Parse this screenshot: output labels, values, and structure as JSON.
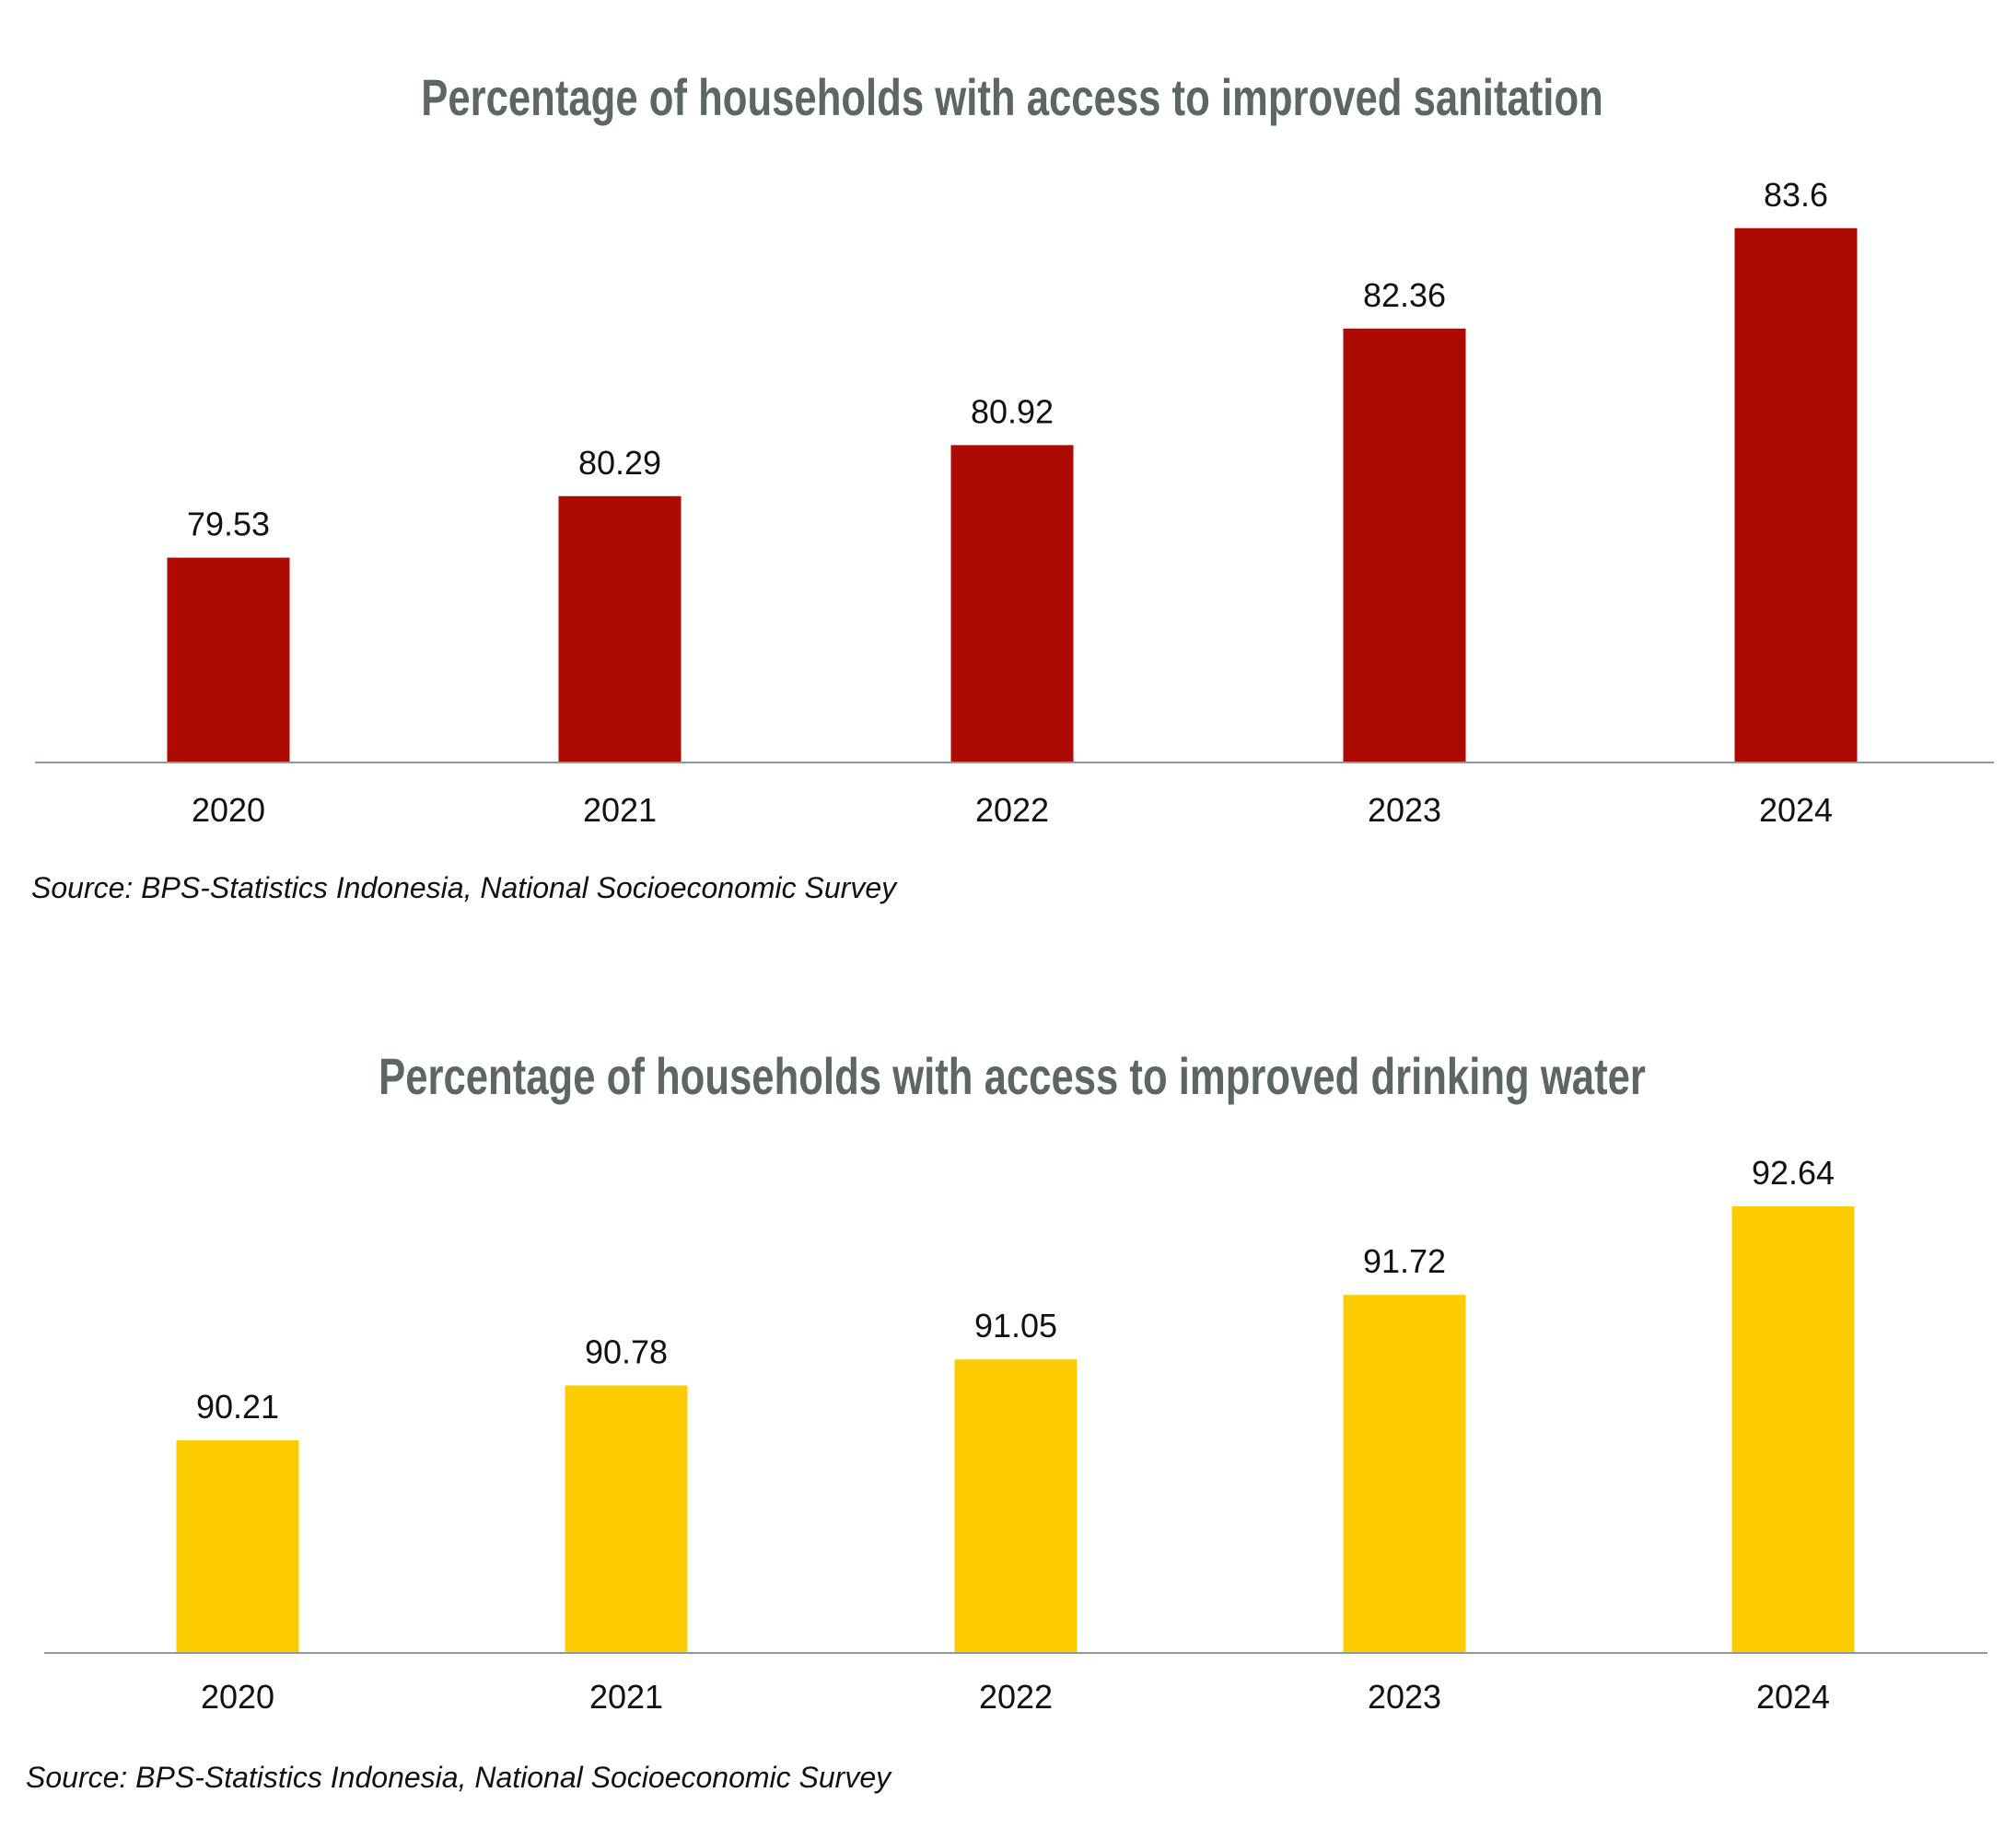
{
  "chart_data": [
    {
      "type": "bar",
      "title": "Percentage of households with access to improved sanitation",
      "categories": [
        "2020",
        "2021",
        "2022",
        "2023",
        "2024"
      ],
      "values": [
        79.53,
        80.29,
        80.92,
        82.36,
        83.6
      ],
      "value_labels": [
        "79.53",
        "80.29",
        "80.92",
        "82.36",
        "83.6"
      ],
      "ylim": [
        77,
        84.2
      ],
      "grid": false,
      "color": "#AD0A02",
      "source": "Source: BPS-Statistics Indonesia, National Socioeconomic Survey"
    },
    {
      "type": "bar",
      "title": "Percentage of households with access to improved drinking water",
      "categories": [
        "2020",
        "2021",
        "2022",
        "2023",
        "2024"
      ],
      "values": [
        90.21,
        90.78,
        91.05,
        91.72,
        92.64
      ],
      "value_labels": [
        "90.21",
        "90.78",
        "91.05",
        "91.72",
        "92.64"
      ],
      "ylim": [
        88,
        93.1
      ],
      "grid": false,
      "color": "#FCCC00",
      "source": "Source: BPS-Statistics Indonesia, National Socioeconomic Survey"
    }
  ]
}
